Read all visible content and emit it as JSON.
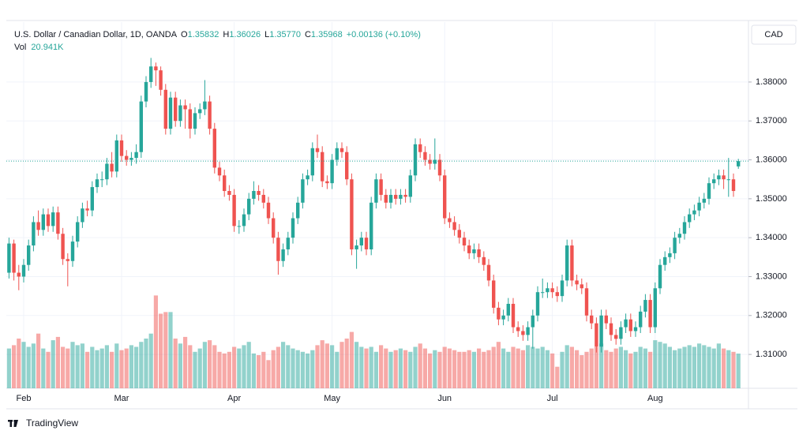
{
  "header": {
    "symbol": "U.S. Dollar / Canadian Dollar, 1D, OANDA",
    "fields": [
      {
        "key": "O",
        "value": "1.35832"
      },
      {
        "key": "H",
        "value": "1.36026"
      },
      {
        "key": "L",
        "value": "1.35770"
      },
      {
        "key": "C",
        "value": "1.35968"
      }
    ],
    "change": "+0.00136 (+0.10%)",
    "volume_label": "Vol",
    "volume_value": "20.941K",
    "currency": "CAD",
    "branding": "TradingView"
  },
  "chart_data": {
    "type": "candlestick",
    "up_color": "#26a69a",
    "down_color": "#ef5350",
    "grid": true,
    "price_line": true,
    "ylim": [
      1.3013,
      1.3954
    ],
    "yticks": [
      {
        "value": 1.31,
        "label": "1.31000"
      },
      {
        "value": 1.32,
        "label": "1.32000"
      },
      {
        "value": 1.33,
        "label": "1.33000"
      },
      {
        "value": 1.34,
        "label": "1.34000"
      },
      {
        "value": 1.35,
        "label": "1.35000"
      },
      {
        "value": 1.36,
        "label": "1.36000"
      },
      {
        "value": 1.37,
        "label": "1.37000"
      },
      {
        "value": 1.38,
        "label": "1.38000"
      }
    ],
    "categories": [
      null,
      null,
      null,
      "Feb",
      null,
      null,
      null,
      null,
      null,
      null,
      null,
      null,
      null,
      null,
      null,
      null,
      null,
      null,
      null,
      null,
      null,
      null,
      null,
      "Mar",
      null,
      null,
      null,
      null,
      null,
      null,
      null,
      null,
      null,
      null,
      null,
      null,
      null,
      null,
      null,
      null,
      null,
      null,
      null,
      null,
      null,
      null,
      "Apr",
      null,
      null,
      null,
      null,
      null,
      null,
      null,
      null,
      null,
      null,
      null,
      null,
      null,
      null,
      null,
      null,
      null,
      null,
      null,
      "May",
      null,
      null,
      null,
      null,
      null,
      null,
      null,
      null,
      null,
      null,
      null,
      null,
      null,
      null,
      null,
      null,
      null,
      null,
      null,
      null,
      null,
      null,
      "Jun",
      null,
      null,
      null,
      null,
      null,
      null,
      null,
      null,
      null,
      null,
      null,
      null,
      null,
      null,
      null,
      null,
      null,
      null,
      null,
      null,
      null,
      "Jul",
      null,
      null,
      null,
      null,
      null,
      null,
      null,
      null,
      null,
      null,
      null,
      null,
      null,
      null,
      null,
      null,
      null,
      null,
      null,
      null,
      "Aug",
      null,
      null,
      null,
      null,
      null,
      null,
      null,
      null,
      null,
      null,
      null,
      null,
      null,
      null,
      null,
      null,
      null
    ],
    "ohlc": [
      [
        1.331,
        1.34,
        1.3295,
        1.3385
      ],
      [
        1.3385,
        1.3395,
        1.329,
        1.331
      ],
      [
        1.331,
        1.333,
        1.3265,
        1.33
      ],
      [
        1.33,
        1.3345,
        1.3285,
        1.333
      ],
      [
        1.333,
        1.3395,
        1.3315,
        1.338
      ],
      [
        1.338,
        1.3455,
        1.3365,
        1.344
      ],
      [
        1.344,
        1.347,
        1.3405,
        1.342
      ],
      [
        1.342,
        1.3475,
        1.3405,
        1.346
      ],
      [
        1.346,
        1.3475,
        1.3415,
        1.343
      ],
      [
        1.343,
        1.348,
        1.3415,
        1.3465
      ],
      [
        1.3465,
        1.348,
        1.3395,
        1.341
      ],
      [
        1.341,
        1.3425,
        1.333,
        1.3345
      ],
      [
        1.3345,
        1.336,
        1.3275,
        1.334
      ],
      [
        1.334,
        1.3405,
        1.3325,
        1.339
      ],
      [
        1.339,
        1.3455,
        1.3375,
        1.344
      ],
      [
        1.344,
        1.349,
        1.3425,
        1.3475
      ],
      [
        1.3475,
        1.3495,
        1.3455,
        1.347
      ],
      [
        1.347,
        1.3545,
        1.3455,
        1.353
      ],
      [
        1.353,
        1.3565,
        1.3515,
        1.355
      ],
      [
        1.355,
        1.357,
        1.353,
        1.355
      ],
      [
        1.355,
        1.3605,
        1.3535,
        1.359
      ],
      [
        1.359,
        1.362,
        1.3555,
        1.357
      ],
      [
        1.357,
        1.3665,
        1.3555,
        1.365
      ],
      [
        1.365,
        1.3665,
        1.3595,
        1.361
      ],
      [
        1.361,
        1.3625,
        1.3585,
        1.36
      ],
      [
        1.36,
        1.362,
        1.3585,
        1.3605
      ],
      [
        1.3605,
        1.364,
        1.359,
        1.362
      ],
      [
        1.362,
        1.3765,
        1.3605,
        1.375
      ],
      [
        1.375,
        1.3815,
        1.3735,
        1.38
      ],
      [
        1.38,
        1.3862,
        1.3785,
        1.384
      ],
      [
        1.384,
        1.385,
        1.379,
        1.383
      ],
      [
        1.383,
        1.384,
        1.3765,
        1.378
      ],
      [
        1.378,
        1.3795,
        1.3665,
        1.368
      ],
      [
        1.368,
        1.3775,
        1.3665,
        1.376
      ],
      [
        1.376,
        1.3775,
        1.3685,
        1.37
      ],
      [
        1.37,
        1.3755,
        1.3685,
        1.374
      ],
      [
        1.374,
        1.3755,
        1.368,
        1.373
      ],
      [
        1.373,
        1.3745,
        1.3655,
        1.368
      ],
      [
        1.368,
        1.3735,
        1.3665,
        1.372
      ],
      [
        1.372,
        1.3745,
        1.3705,
        1.373
      ],
      [
        1.373,
        1.3805,
        1.3715,
        1.375
      ],
      [
        1.375,
        1.3765,
        1.3665,
        1.368
      ],
      [
        1.368,
        1.3695,
        1.3565,
        1.358
      ],
      [
        1.358,
        1.3595,
        1.3545,
        1.356
      ],
      [
        1.356,
        1.3575,
        1.3505,
        1.352
      ],
      [
        1.352,
        1.3535,
        1.3495,
        1.351
      ],
      [
        1.351,
        1.3525,
        1.3415,
        1.343
      ],
      [
        1.343,
        1.3445,
        1.341,
        1.343
      ],
      [
        1.343,
        1.3475,
        1.3415,
        1.346
      ],
      [
        1.346,
        1.3515,
        1.3445,
        1.35
      ],
      [
        1.35,
        1.3545,
        1.3485,
        1.352
      ],
      [
        1.352,
        1.3535,
        1.3495,
        1.351
      ],
      [
        1.351,
        1.3525,
        1.3475,
        1.349
      ],
      [
        1.349,
        1.3505,
        1.3435,
        1.345
      ],
      [
        1.345,
        1.3465,
        1.3385,
        1.34
      ],
      [
        1.34,
        1.3415,
        1.3305,
        1.334
      ],
      [
        1.334,
        1.3385,
        1.3325,
        1.337
      ],
      [
        1.337,
        1.3415,
        1.3355,
        1.34
      ],
      [
        1.34,
        1.3465,
        1.3385,
        1.345
      ],
      [
        1.345,
        1.3505,
        1.3435,
        1.349
      ],
      [
        1.349,
        1.3565,
        1.3475,
        1.355
      ],
      [
        1.355,
        1.3575,
        1.3535,
        1.356
      ],
      [
        1.356,
        1.3645,
        1.3545,
        1.363
      ],
      [
        1.363,
        1.3665,
        1.3605,
        1.362
      ],
      [
        1.362,
        1.3635,
        1.353,
        1.3545
      ],
      [
        1.3545,
        1.356,
        1.3525,
        1.354
      ],
      [
        1.354,
        1.3615,
        1.3525,
        1.36
      ],
      [
        1.36,
        1.3645,
        1.3585,
        1.363
      ],
      [
        1.363,
        1.3645,
        1.3605,
        1.362
      ],
      [
        1.362,
        1.3635,
        1.3535,
        1.355
      ],
      [
        1.355,
        1.3565,
        1.3355,
        1.337
      ],
      [
        1.337,
        1.3395,
        1.332,
        1.338
      ],
      [
        1.338,
        1.3415,
        1.3365,
        1.34
      ],
      [
        1.34,
        1.3415,
        1.3355,
        1.337
      ],
      [
        1.337,
        1.3505,
        1.3355,
        1.349
      ],
      [
        1.349,
        1.3565,
        1.3475,
        1.355
      ],
      [
        1.355,
        1.3565,
        1.3495,
        1.351
      ],
      [
        1.351,
        1.3525,
        1.3475,
        1.349
      ],
      [
        1.349,
        1.3525,
        1.3475,
        1.351
      ],
      [
        1.351,
        1.3525,
        1.3485,
        1.35
      ],
      [
        1.35,
        1.3525,
        1.3485,
        1.351
      ],
      [
        1.351,
        1.3525,
        1.349,
        1.3505
      ],
      [
        1.3505,
        1.3575,
        1.349,
        1.356
      ],
      [
        1.356,
        1.3655,
        1.3545,
        1.364
      ],
      [
        1.364,
        1.3655,
        1.3605,
        1.362
      ],
      [
        1.362,
        1.3635,
        1.3585,
        1.36
      ],
      [
        1.36,
        1.3615,
        1.3575,
        1.359
      ],
      [
        1.359,
        1.3655,
        1.3575,
        1.36
      ],
      [
        1.36,
        1.3615,
        1.3545,
        1.356
      ],
      [
        1.356,
        1.3575,
        1.3435,
        1.345
      ],
      [
        1.345,
        1.3465,
        1.3425,
        1.344
      ],
      [
        1.344,
        1.3455,
        1.3405,
        1.342
      ],
      [
        1.342,
        1.3435,
        1.3385,
        1.34
      ],
      [
        1.34,
        1.3415,
        1.3365,
        1.338
      ],
      [
        1.338,
        1.3395,
        1.3345,
        1.336
      ],
      [
        1.336,
        1.3385,
        1.3345,
        1.337
      ],
      [
        1.337,
        1.3385,
        1.3335,
        1.335
      ],
      [
        1.335,
        1.3365,
        1.3315,
        1.333
      ],
      [
        1.333,
        1.3345,
        1.3275,
        1.329
      ],
      [
        1.329,
        1.3305,
        1.3205,
        1.322
      ],
      [
        1.322,
        1.3235,
        1.3175,
        1.319
      ],
      [
        1.319,
        1.3215,
        1.3175,
        1.32
      ],
      [
        1.32,
        1.3245,
        1.3185,
        1.323
      ],
      [
        1.323,
        1.3245,
        1.3155,
        1.317
      ],
      [
        1.317,
        1.3185,
        1.3145,
        1.316
      ],
      [
        1.316,
        1.3175,
        1.3135,
        1.315
      ],
      [
        1.315,
        1.3185,
        1.3135,
        1.317
      ],
      [
        1.317,
        1.3215,
        1.3115,
        1.32
      ],
      [
        1.32,
        1.3275,
        1.3185,
        1.326
      ],
      [
        1.326,
        1.3295,
        1.3245,
        1.326
      ],
      [
        1.326,
        1.3285,
        1.3245,
        1.327
      ],
      [
        1.327,
        1.3285,
        1.3245,
        1.326
      ],
      [
        1.326,
        1.3275,
        1.3235,
        1.325
      ],
      [
        1.325,
        1.3305,
        1.3235,
        1.329
      ],
      [
        1.329,
        1.3395,
        1.3275,
        1.338
      ],
      [
        1.338,
        1.3395,
        1.3275,
        1.329
      ],
      [
        1.329,
        1.3305,
        1.3265,
        1.328
      ],
      [
        1.328,
        1.3295,
        1.3255,
        1.327
      ],
      [
        1.327,
        1.3285,
        1.3185,
        1.32
      ],
      [
        1.32,
        1.3215,
        1.3165,
        1.318
      ],
      [
        1.318,
        1.3195,
        1.3105,
        1.312
      ],
      [
        1.312,
        1.3215,
        1.3105,
        1.32
      ],
      [
        1.32,
        1.3215,
        1.3165,
        1.318
      ],
      [
        1.318,
        1.3195,
        1.3135,
        1.315
      ],
      [
        1.315,
        1.3165,
        1.3125,
        1.314
      ],
      [
        1.314,
        1.3185,
        1.3125,
        1.317
      ],
      [
        1.317,
        1.3205,
        1.3155,
        1.319
      ],
      [
        1.319,
        1.3205,
        1.3145,
        1.316
      ],
      [
        1.316,
        1.3185,
        1.3145,
        1.317
      ],
      [
        1.317,
        1.3225,
        1.3155,
        1.321
      ],
      [
        1.321,
        1.3255,
        1.3195,
        1.324
      ],
      [
        1.324,
        1.3255,
        1.3155,
        1.317
      ],
      [
        1.317,
        1.3285,
        1.3155,
        1.327
      ],
      [
        1.327,
        1.3345,
        1.3255,
        1.333
      ],
      [
        1.333,
        1.3365,
        1.3315,
        1.335
      ],
      [
        1.335,
        1.3375,
        1.3335,
        1.336
      ],
      [
        1.336,
        1.3415,
        1.3345,
        1.34
      ],
      [
        1.34,
        1.3425,
        1.3385,
        1.341
      ],
      [
        1.341,
        1.3455,
        1.3395,
        1.344
      ],
      [
        1.344,
        1.3475,
        1.3425,
        1.346
      ],
      [
        1.346,
        1.3485,
        1.3445,
        1.347
      ],
      [
        1.347,
        1.3505,
        1.3455,
        1.349
      ],
      [
        1.349,
        1.3515,
        1.3475,
        1.35
      ],
      [
        1.35,
        1.3555,
        1.3485,
        1.354
      ],
      [
        1.354,
        1.3565,
        1.3525,
        1.355
      ],
      [
        1.355,
        1.3575,
        1.3535,
        1.356
      ],
      [
        1.356,
        1.3575,
        1.3525,
        1.355
      ],
      [
        1.355,
        1.3605,
        1.3505,
        1.355
      ],
      [
        1.355,
        1.3565,
        1.3505,
        1.352
      ],
      [
        1.35832,
        1.36026,
        1.3577,
        1.35968
      ]
    ],
    "volume": [
      24,
      26,
      30,
      28,
      25,
      27,
      33,
      24,
      22,
      29,
      31,
      25,
      24,
      28,
      26,
      27,
      22,
      25,
      23,
      24,
      26,
      22,
      27,
      23,
      24,
      26,
      25,
      28,
      30,
      33,
      56,
      45,
      46,
      46,
      30,
      27,
      31,
      26,
      22,
      24,
      28,
      29,
      26,
      22,
      21,
      22,
      25,
      24,
      26,
      28,
      21,
      20,
      22,
      17,
      23,
      25,
      28,
      26,
      24,
      23,
      22,
      21,
      23,
      26,
      29,
      27,
      26,
      22,
      28,
      30,
      34,
      28,
      25,
      24,
      25,
      22,
      26,
      24,
      22,
      23,
      24,
      23,
      22,
      25,
      27,
      24,
      21,
      23,
      22,
      25,
      24,
      23,
      22,
      22,
      23,
      22,
      24,
      22,
      23,
      25,
      28,
      24,
      22,
      25,
      24,
      23,
      26,
      25,
      24,
      25,
      23,
      21,
      13,
      22,
      26,
      25,
      23,
      20,
      22,
      24,
      25,
      27,
      23,
      22,
      24,
      25,
      23,
      21,
      22,
      25,
      24,
      22,
      29,
      28,
      27,
      25,
      23,
      24,
      25,
      26,
      25,
      27,
      26,
      25,
      24,
      27,
      24,
      23,
      22,
      20.941
    ]
  }
}
